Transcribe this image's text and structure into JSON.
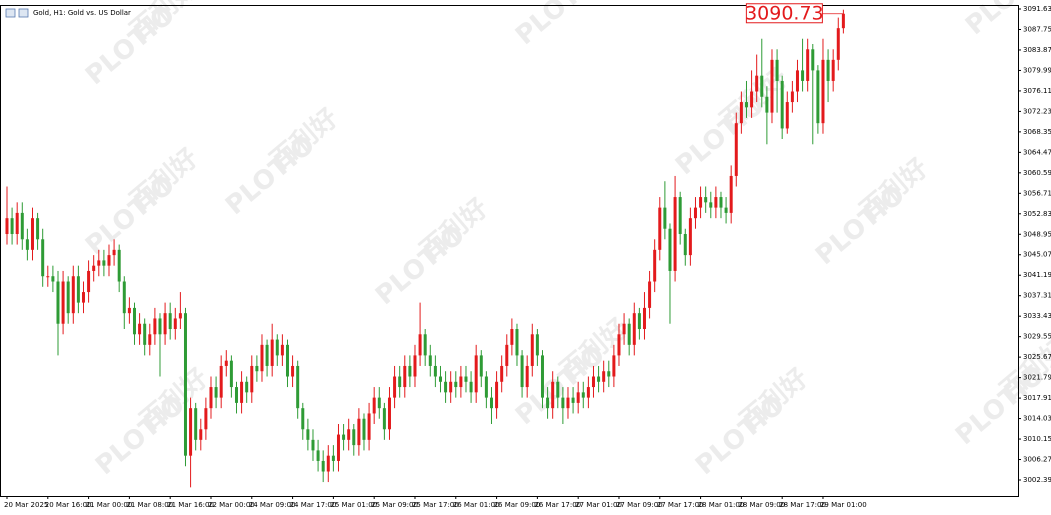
{
  "chart_data": {
    "type": "candlestick",
    "title": "Gold, H1:  Gold vs. US Dollar",
    "watermark": [
      "PLOTIO",
      "百利好"
    ],
    "up_color": "#e31a1c",
    "down_color": "#2e9b35",
    "xlim": [
      -1.37,
      198.24
    ],
    "ylim": [
      2999.36,
      3092.39
    ],
    "yticks": [
      3091.63,
      3087.75,
      3083.87,
      3079.99,
      3076.11,
      3072.23,
      3068.35,
      3064.47,
      3060.59,
      3056.71,
      3052.83,
      3048.95,
      3045.07,
      3041.19,
      3037.31,
      3033.43,
      3029.55,
      3025.67,
      3021.79,
      3017.91,
      3014.03,
      3010.15,
      3006.27,
      3002.39
    ],
    "xticks": [
      {
        "value": 0,
        "label": "20 Mar 2025"
      },
      {
        "value": 8,
        "label": "20 Mar 16:00"
      },
      {
        "value": 16,
        "label": "21 Mar 00:00"
      },
      {
        "value": 24,
        "label": "21 Mar 08:00"
      },
      {
        "value": 32,
        "label": "21 Mar 16:00"
      },
      {
        "value": 40,
        "label": "22 Mar 00:00"
      },
      {
        "value": 48,
        "label": "24 Mar 09:00"
      },
      {
        "value": 56,
        "label": "24 Mar 17:00"
      },
      {
        "value": 64,
        "label": "25 Mar 01:00"
      },
      {
        "value": 72,
        "label": "25 Mar 09:00"
      },
      {
        "value": 80,
        "label": "25 Mar 17:00"
      },
      {
        "value": 88,
        "label": "26 Mar 01:00"
      },
      {
        "value": 96,
        "label": "26 Mar 09:00"
      },
      {
        "value": 104,
        "label": "26 Mar 17:00"
      },
      {
        "value": 112,
        "label": "27 Mar 01:00"
      },
      {
        "value": 120,
        "label": "27 Mar 09:00"
      },
      {
        "value": 128,
        "label": "27 Mar 17:00"
      },
      {
        "value": 136,
        "label": "28 Mar 01:00"
      },
      {
        "value": 144,
        "label": "28 Mar 09:00"
      },
      {
        "value": 152,
        "label": "28 Mar 17:00"
      },
      {
        "value": 160,
        "label": "29 Mar 01:00"
      }
    ],
    "open": [
      3049,
      3052,
      3049,
      3053,
      3048,
      3046,
      3052,
      3048,
      3041,
      3041,
      3040,
      3032,
      3040,
      3034,
      3041,
      3036,
      3038,
      3042,
      3043,
      3044,
      3043,
      3045,
      3046,
      3040,
      3034,
      3035,
      3030,
      3032,
      3028,
      3030,
      3033,
      3030,
      3034,
      3031,
      3033,
      3034,
      3007,
      3016,
      3010,
      3012,
      3016,
      3020,
      3018,
      3024,
      3025,
      3020,
      3017,
      3021,
      3019,
      3024,
      3023,
      3028,
      3024,
      3029,
      3026,
      3028,
      3022,
      3024,
      3016,
      3012,
      3010,
      3008,
      3006,
      3004,
      3007,
      3006,
      3011,
      3010,
      3012,
      3009,
      3014,
      3010,
      3015,
      3018,
      3016,
      3012,
      3018,
      3022,
      3020,
      3024,
      3022,
      3026,
      3030,
      3026,
      3024,
      3022,
      3021,
      3019,
      3021,
      3020,
      3022,
      3021,
      3019,
      3026,
      3022,
      3018,
      3016,
      3021,
      3024,
      3028,
      3031,
      3026,
      3020,
      3024,
      3030,
      3026,
      3018,
      3016,
      3021,
      3018,
      3016,
      3018,
      3017,
      3019,
      3018,
      3020,
      3022,
      3021,
      3023,
      3022,
      3026,
      3030,
      3032,
      3028,
      3034,
      3031,
      3035,
      3040,
      3046,
      3054,
      3050,
      3042,
      3056,
      3049,
      3045,
      3052,
      3054,
      3056,
      3055,
      3054,
      3056,
      3054,
      3053,
      3060,
      3070,
      3074,
      3073,
      3076,
      3079,
      3075,
      3072,
      3082,
      3078,
      3069,
      3074,
      3076,
      3080,
      3078,
      3084,
      3080,
      3070,
      3082,
      3078,
      3082,
      3088
    ],
    "high": [
      3058,
      3054,
      3055,
      3055,
      3050,
      3054,
      3053,
      3050,
      3043,
      3043,
      3042,
      3042,
      3041,
      3043,
      3043,
      3040,
      3044,
      3045,
      3046,
      3046,
      3047,
      3048,
      3047,
      3041,
      3037,
      3036,
      3034,
      3033,
      3032,
      3035,
      3034,
      3036,
      3036,
      3035,
      3038,
      3035,
      3018,
      3017,
      3014,
      3018,
      3022,
      3022,
      3026,
      3027,
      3026,
      3021,
      3023,
      3022,
      3026,
      3026,
      3030,
      3029,
      3032,
      3030,
      3030,
      3029,
      3026,
      3025,
      3017,
      3014,
      3012,
      3010,
      3008,
      3009,
      3009,
      3013,
      3013,
      3014,
      3013,
      3016,
      3015,
      3017,
      3020,
      3020,
      3017,
      3020,
      3024,
      3024,
      3026,
      3026,
      3028,
      3036,
      3031,
      3028,
      3026,
      3024,
      3023,
      3023,
      3023,
      3024,
      3024,
      3023,
      3028,
      3027,
      3023,
      3020,
      3023,
      3026,
      3030,
      3033,
      3032,
      3027,
      3026,
      3032,
      3031,
      3027,
      3020,
      3023,
      3022,
      3020,
      3020,
      3020,
      3021,
      3021,
      3022,
      3024,
      3024,
      3025,
      3025,
      3028,
      3032,
      3034,
      3033,
      3036,
      3035,
      3038,
      3042,
      3048,
      3056,
      3059,
      3051,
      3060,
      3057,
      3050,
      3054,
      3056,
      3058,
      3058,
      3057,
      3058,
      3057,
      3056,
      3062,
      3072,
      3076,
      3078,
      3080,
      3083,
      3086,
      3077,
      3084,
      3084,
      3079,
      3076,
      3078,
      3082,
      3086,
      3086,
      3085,
      3081,
      3086,
      3084,
      3084,
      3090,
      3091.5
    ],
    "low": [
      3047,
      3047,
      3047,
      3046,
      3044,
      3044,
      3046,
      3039,
      3039,
      3038,
      3026,
      3030,
      3032,
      3032,
      3034,
      3034,
      3036,
      3040,
      3041,
      3041,
      3041,
      3043,
      3038,
      3031,
      3032,
      3028,
      3028,
      3026,
      3026,
      3028,
      3022,
      3028,
      3029,
      3029,
      3031,
      3005,
      3001,
      3008,
      3008,
      3010,
      3014,
      3016,
      3016,
      3022,
      3018,
      3015,
      3015,
      3017,
      3017,
      3021,
      3021,
      3022,
      3022,
      3024,
      3024,
      3020,
      3020,
      3014,
      3010,
      3008,
      3006,
      3004,
      3002,
      3002,
      3004,
      3004,
      3008,
      3008,
      3007,
      3007,
      3008,
      3008,
      3013,
      3014,
      3010,
      3010,
      3016,
      3018,
      3018,
      3020,
      3020,
      3024,
      3024,
      3022,
      3020,
      3019,
      3017,
      3017,
      3018,
      3018,
      3019,
      3017,
      3017,
      3020,
      3016,
      3013,
      3014,
      3019,
      3022,
      3026,
      3024,
      3018,
      3018,
      3022,
      3024,
      3016,
      3014,
      3014,
      3016,
      3013,
      3014,
      3015,
      3015,
      3016,
      3016,
      3018,
      3019,
      3019,
      3020,
      3020,
      3024,
      3028,
      3026,
      3026,
      3029,
      3029,
      3033,
      3038,
      3044,
      3048,
      3032,
      3040,
      3047,
      3043,
      3043,
      3050,
      3052,
      3053,
      3052,
      3052,
      3052,
      3051,
      3051,
      3058,
      3068,
      3071,
      3071,
      3074,
      3073,
      3066,
      3070,
      3072,
      3067,
      3068,
      3072,
      3074,
      3076,
      3076,
      3066,
      3068,
      3068,
      3074,
      3076,
      3080,
      3087
    ],
    "close": [
      3052,
      3049,
      3053,
      3048,
      3046,
      3052,
      3048,
      3041,
      3041,
      3040,
      3032,
      3040,
      3034,
      3041,
      3036,
      3038,
      3042,
      3043,
      3044,
      3043,
      3045,
      3046,
      3040,
      3034,
      3035,
      3030,
      3032,
      3028,
      3030,
      3033,
      3030,
      3034,
      3031,
      3033,
      3034,
      3007,
      3016,
      3010,
      3012,
      3016,
      3020,
      3018,
      3024,
      3025,
      3020,
      3017,
      3021,
      3019,
      3024,
      3023,
      3028,
      3024,
      3029,
      3026,
      3028,
      3022,
      3024,
      3016,
      3012,
      3010,
      3008,
      3006,
      3004,
      3007,
      3006,
      3011,
      3010,
      3012,
      3009,
      3014,
      3010,
      3015,
      3018,
      3016,
      3012,
      3018,
      3022,
      3020,
      3024,
      3022,
      3026,
      3030,
      3026,
      3024,
      3022,
      3021,
      3019,
      3021,
      3020,
      3022,
      3021,
      3019,
      3026,
      3022,
      3018,
      3016,
      3021,
      3024,
      3028,
      3031,
      3026,
      3020,
      3024,
      3030,
      3026,
      3018,
      3016,
      3021,
      3018,
      3016,
      3018,
      3017,
      3019,
      3018,
      3020,
      3022,
      3021,
      3023,
      3022,
      3026,
      3030,
      3032,
      3028,
      3034,
      3031,
      3035,
      3040,
      3046,
      3054,
      3050,
      3042,
      3056,
      3049,
      3045,
      3052,
      3054,
      3056,
      3055,
      3054,
      3056,
      3054,
      3053,
      3060,
      3070,
      3074,
      3073,
      3076,
      3079,
      3075,
      3072,
      3082,
      3078,
      3069,
      3074,
      3076,
      3080,
      3078,
      3084,
      3080,
      3070,
      3082,
      3078,
      3082,
      3088,
      3090.73
    ]
  }
}
